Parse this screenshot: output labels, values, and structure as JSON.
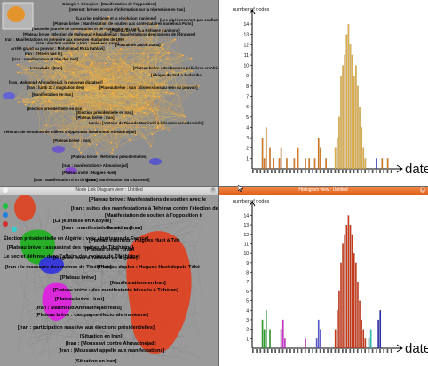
{
  "top_graph": {
    "labels": [
      "Géorgie > Géorgien : [Manifestation de l'opposition]",
      "[Internet: brèves source d'information sur la répression en Iran]",
      "[La crise politique et la révolution iranienne]",
      "[Plateau brève : Manifestation de soutien aux contestataires iraniens à Paris]",
      "[Les algériens n'ont pas confiance]",
      "[Nouvelle journée de contestation et de répression en Iran]",
      "[Plateau brève : Election de Mahmoud Ahmadinejad : Manifestations des iraniens de l'étranger]",
      "[Plateau brève : La Réforme iranienne]",
      "Iran : Manifestations en mémoire aux émeutes étudiantes de 1999",
      "[Iran : élection validée > Iran : week-end sans]",
      "Arrêté grand au pouvoir : Mohammad Reza Pahlavi]",
      "[Portrait de Jacob Zuma]",
      "Iran : [fête en vue le]",
      "[Iran : manifestation et rôle des tied]",
      "L'escalade : [Iran]",
      "[Plateau brève : des bavures policières en Afrique]",
      "[Afrique du Sud > Sudafrika]",
      "[Iran, Mahmoud Ahmadinejad, le nouveau dictateur]",
      "[Iran : lundi 23 / stagnation des]",
      "[Plateau brève : Iran : dissensions au sein du pouvoir]",
      "[Manifestation en Iran]",
      "[Élection présidentielle en Iran]",
      "[Élection présidentielle en Iran]",
      "[Plateau brève : Iran]",
      "Iranie : [Victoire de Ricardo Martinelli à l'élection présidentielle]",
      "Téhéran: de centaines de milliers d'opposants à Mahmoud Ahmadinejad]",
      "[Plateau brève : Iran]",
      "[Plateau brève : Réformes présidentielles]",
      "[Iran : manifestation > Ahmadinejad]",
      "[Plateau invité : Hugues Huet]",
      "[Iran : Manifestation d'un dirigeant]",
      "[Iran : Manifestation du Khamenei]"
    ]
  },
  "bottom_graph": {
    "window_title": "Node Link Diagram view : Untitled",
    "labels": [
      "[Plateau brève : Manifestations de soutien avec le",
      "[Iran : suites des manifestations à Téhéran contre l'élection de Mahmoud",
      "[Manifestation de soutien à l'opposition ir",
      "[La jeunesse en Kabylie]",
      "[Iran : manifestations en Iran]",
      "Tension : [Iran]",
      "Élection présidentielle en Algérie : voix algérienne de France]",
      "[Plateau extérieur : Hugues Huet à Téh",
      "[Plateau brève : assassinat des moines de Tibéhirine]",
      "[Plateau brève : Iran]",
      "Le secret défense dans l'affaire des moines de Tibéhirine]",
      "[Hugues Huet à Téhéran en Algérie]",
      "[Iran : le massacre des moines de Tibéhirine]",
      "[Plateau duplex : Hugues Huet depuis Téhé",
      "[Plateau brève]",
      "[Manifestations en Iran]",
      "[Plateau brève : des manifestants blessés à Téhéran]",
      "[Plateau brève : Iran]",
      "[Iran : Mahmoud Ahmadinejad réélu]",
      "[Plateau brève : campagne électorale iranienne]",
      "[Iran : participation massive aux élections présidentielles]",
      "[Situation en Iran]",
      "[Iran : [Moussavi contre Ahmadinejad]",
      "[Iran : [Moussavi appelle aux manifestations]",
      "[Situation en Iran]"
    ]
  },
  "histogram_top": {
    "chart_data": {
      "type": "bar",
      "title": "",
      "ylabel": "number of nodes",
      "xlabel": "date",
      "ylim": [
        0,
        14
      ],
      "yticks": [
        "1",
        "2",
        "3",
        "4",
        "5",
        "6",
        "7",
        "8",
        "9",
        "10",
        "11",
        "12",
        "13",
        "14"
      ],
      "series": [
        {
          "color": "#d97a1f",
          "values": [
            0,
            0,
            0,
            0,
            0,
            3,
            1,
            4,
            0,
            2,
            0,
            1,
            0,
            0,
            1,
            2,
            0,
            0,
            1,
            0,
            0,
            0,
            1,
            0,
            2,
            0,
            0,
            0,
            1,
            0,
            1,
            0,
            0,
            1,
            0,
            3,
            2,
            0,
            0,
            1,
            0,
            0,
            0,
            0,
            0,
            0,
            0,
            0,
            0,
            0,
            0,
            0,
            0,
            0,
            0,
            0,
            0,
            0,
            0,
            0,
            0,
            0,
            0,
            0,
            0,
            0,
            0,
            0,
            0,
            1,
            0,
            0,
            1,
            0,
            0,
            0
          ]
        },
        {
          "color": "#e0b04a",
          "values": [
            0,
            0,
            0,
            0,
            0,
            0,
            0,
            0,
            0,
            0,
            0,
            0,
            0,
            0,
            0,
            0,
            0,
            0,
            0,
            0,
            0,
            0,
            0,
            0,
            0,
            0,
            0,
            0,
            0,
            0,
            0,
            0,
            0,
            0,
            0,
            0,
            0,
            0,
            0,
            0,
            0,
            0,
            0,
            0,
            2,
            3,
            5,
            9,
            10,
            11,
            13,
            14,
            12,
            11,
            9,
            10,
            8,
            6,
            4,
            2,
            1,
            0,
            0,
            0,
            0,
            0,
            0,
            0,
            0,
            0,
            0,
            0,
            0,
            0,
            0,
            0
          ]
        },
        {
          "color": "#3b3bd0",
          "values": [
            0,
            0,
            0,
            0,
            0,
            0,
            0,
            0,
            0,
            0,
            0,
            0,
            0,
            0,
            0,
            0,
            0,
            0,
            0,
            0,
            0,
            0,
            0,
            0,
            0,
            0,
            0,
            0,
            0,
            0,
            0,
            0,
            0,
            0,
            0,
            0,
            0,
            0,
            0,
            0,
            0,
            0,
            0,
            0,
            0,
            0,
            0,
            0,
            0,
            0,
            0,
            0,
            0,
            0,
            0,
            0,
            0,
            0,
            0,
            0,
            0,
            0,
            0,
            0,
            0,
            0,
            1,
            0,
            0,
            0,
            0,
            0,
            0,
            0,
            0,
            0
          ]
        }
      ]
    }
  },
  "histogram_bottom": {
    "window_title": "Histogram view : Untitled",
    "chart_data": {
      "type": "bar",
      "title": "",
      "ylabel": "number of nodes",
      "xlabel": "date",
      "ylim": [
        0,
        14
      ],
      "yticks": [
        "1",
        "2",
        "3",
        "4",
        "5",
        "6",
        "7",
        "8",
        "9",
        "10",
        "11",
        "12",
        "13",
        "14"
      ],
      "series": [
        {
          "color": "#2aa02a",
          "values": [
            0,
            0,
            0,
            0,
            0,
            3,
            2,
            4,
            0,
            2,
            0,
            0,
            0,
            0,
            0,
            0,
            0,
            0,
            0,
            0,
            0,
            0,
            0,
            0,
            0,
            0,
            0,
            0,
            0,
            0,
            0,
            0,
            0,
            0,
            0,
            0,
            0,
            0,
            0,
            0,
            0,
            0,
            0,
            0,
            0,
            0,
            0,
            0,
            0,
            0,
            0,
            0,
            0,
            0,
            0,
            0,
            0,
            0,
            0,
            0,
            0,
            0,
            0,
            0,
            0,
            0,
            0,
            0,
            0,
            0,
            0,
            0,
            0,
            0,
            0,
            0
          ]
        },
        {
          "color": "#d030d0",
          "values": [
            0,
            0,
            0,
            0,
            0,
            0,
            0,
            0,
            0,
            0,
            0,
            0,
            0,
            0,
            0,
            2,
            3,
            1,
            0,
            0,
            0,
            0,
            0,
            0,
            0,
            0,
            0,
            0,
            1,
            0,
            0,
            0,
            0,
            0,
            0,
            0,
            0,
            0,
            0,
            0,
            0,
            0,
            0,
            0,
            0,
            0,
            0,
            0,
            0,
            0,
            0,
            0,
            0,
            0,
            0,
            0,
            0,
            0,
            0,
            0,
            0,
            0,
            0,
            0,
            0,
            0,
            0,
            0,
            0,
            0,
            0,
            0,
            0,
            0,
            0,
            0
          ]
        },
        {
          "color": "#5a5ad8",
          "values": [
            0,
            0,
            0,
            0,
            0,
            0,
            0,
            0,
            0,
            0,
            0,
            0,
            0,
            0,
            0,
            0,
            0,
            0,
            0,
            0,
            0,
            0,
            0,
            0,
            0,
            0,
            0,
            0,
            0,
            0,
            0,
            0,
            0,
            0,
            1,
            3,
            2,
            0,
            0,
            0,
            0,
            0,
            0,
            0,
            0,
            0,
            0,
            0,
            0,
            0,
            0,
            0,
            0,
            0,
            0,
            0,
            0,
            0,
            0,
            0,
            0,
            0,
            0,
            0,
            0,
            0,
            0,
            0,
            0,
            0,
            0,
            0,
            0,
            0,
            0,
            0
          ]
        },
        {
          "color": "#cc3a1a",
          "values": [
            0,
            0,
            0,
            0,
            0,
            0,
            0,
            0,
            0,
            0,
            0,
            0,
            0,
            0,
            0,
            0,
            0,
            0,
            0,
            0,
            0,
            0,
            0,
            0,
            0,
            0,
            0,
            0,
            0,
            0,
            0,
            0,
            0,
            0,
            0,
            0,
            0,
            0,
            0,
            0,
            0,
            0,
            0,
            0,
            2,
            4,
            6,
            9,
            11,
            12,
            13,
            14,
            13,
            12,
            10,
            9,
            7,
            5,
            3,
            2,
            1,
            0,
            0,
            0,
            0,
            0,
            0,
            0,
            0,
            0,
            0,
            0,
            0,
            0,
            0,
            0
          ]
        },
        {
          "color": "#30c0c0",
          "values": [
            0,
            0,
            0,
            0,
            0,
            0,
            0,
            0,
            0,
            0,
            0,
            0,
            0,
            0,
            0,
            0,
            0,
            0,
            0,
            0,
            0,
            0,
            0,
            0,
            0,
            0,
            0,
            0,
            0,
            0,
            0,
            0,
            0,
            0,
            0,
            0,
            0,
            0,
            0,
            0,
            0,
            0,
            0,
            0,
            0,
            0,
            0,
            0,
            0,
            0,
            0,
            0,
            0,
            0,
            0,
            0,
            0,
            0,
            0,
            0,
            0,
            0,
            1,
            2,
            0,
            0,
            0,
            0,
            0,
            0,
            0,
            0,
            0,
            0,
            0,
            0
          ]
        },
        {
          "color": "#2a2ab0",
          "values": [
            0,
            0,
            0,
            0,
            0,
            0,
            0,
            0,
            0,
            0,
            0,
            0,
            0,
            0,
            0,
            0,
            0,
            0,
            0,
            0,
            0,
            0,
            0,
            0,
            0,
            0,
            0,
            0,
            0,
            0,
            0,
            0,
            0,
            0,
            0,
            0,
            0,
            0,
            0,
            0,
            0,
            0,
            0,
            0,
            0,
            0,
            0,
            0,
            0,
            0,
            0,
            0,
            0,
            0,
            0,
            0,
            0,
            0,
            0,
            0,
            0,
            0,
            0,
            0,
            0,
            0,
            0,
            3,
            4,
            0,
            0,
            0,
            0,
            0,
            0,
            0
          ]
        }
      ]
    }
  },
  "colors": {
    "graph_bg_top": "#8f8f8f",
    "graph_bg_bottom": "#9a9a9a",
    "orange_cluster": "#e8901e",
    "red_cluster": "#e04020",
    "green_cluster": "#20b020",
    "magenta_cluster": "#e020e0",
    "blue_cluster": "#3030e0",
    "cyan_cluster": "#30d0d0"
  }
}
